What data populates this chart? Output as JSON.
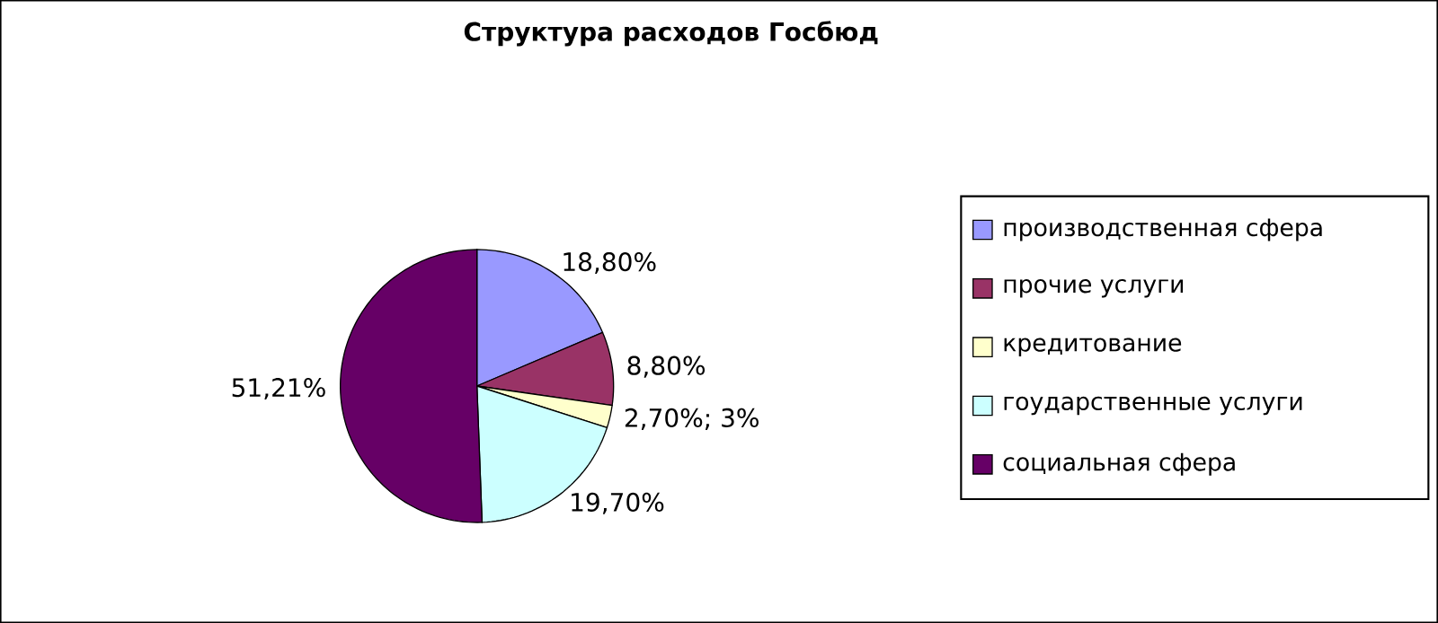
{
  "chart_data": {
    "type": "pie",
    "title": "Структура расходов Госбюд",
    "categories": [
      "производственная сфера",
      "прочие услуги",
      "кредитование",
      "гоударственные услуги",
      "социальная сфера"
    ],
    "values": [
      18.8,
      8.8,
      2.7,
      19.7,
      51.21
    ],
    "value_labels": [
      "18,80%",
      "8,80%",
      "2,70%; 3%",
      "19,70%",
      "51,21%"
    ],
    "colors": [
      "#9999ff",
      "#993366",
      "#ffffcc",
      "#ccffff",
      "#660066"
    ],
    "legend": "right"
  }
}
